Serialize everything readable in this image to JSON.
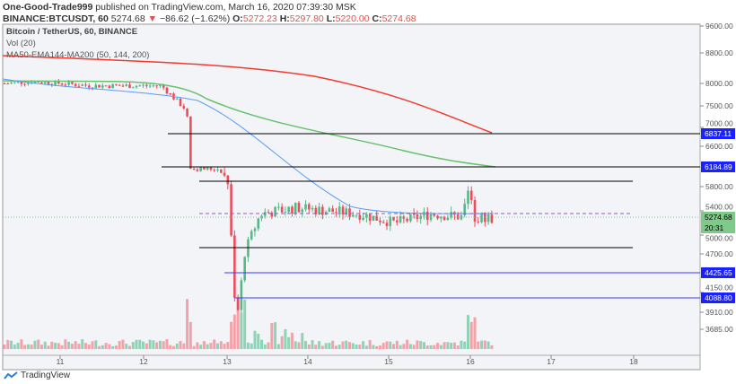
{
  "header": {
    "author": "One-Good-Trade999",
    "published_text": "published on TradingView.com, March 16, 2020 07:39:30 MSK",
    "symbol": "BINANCE:BTCUSDT, 60",
    "last": "5274.68",
    "change": "−86.62 (−1.62%)",
    "o_label": "O:",
    "o": "5272.23",
    "h_label": "H:",
    "h": "5297.80",
    "l_label": "L:",
    "l": "5220.00",
    "c_label": "C:",
    "c": "5274.68"
  },
  "legend": {
    "title": "Bitcoin / TetherUS, 60, BINANCE",
    "vol": "Vol (20)",
    "ma": "MA50-EMA144-MA200 (50, 144, 200)"
  },
  "price_axis": {
    "ticks": [
      "9600.00",
      "8800.00",
      "8000.00",
      "7500.00",
      "7000.00",
      "6600.00",
      "5800.00",
      "5400.00",
      "5000.00",
      "4700.00",
      "4150.00",
      "3910.00",
      "3685.00"
    ],
    "labels": [
      {
        "text": "6837.11",
        "color": "#1a22ff"
      },
      {
        "text": "6184.89",
        "color": "#1a22ff"
      },
      {
        "text": "4425.65",
        "color": "#1a22ff"
      },
      {
        "text": "4088.80",
        "color": "#1a22ff"
      },
      {
        "text": "5274.68",
        "color": "#7fc98a"
      },
      {
        "text": "20:31",
        "color": "#7fc98a"
      }
    ]
  },
  "time_axis": {
    "ticks": [
      "11",
      "12",
      "13",
      "14",
      "15",
      "16",
      "17",
      "18"
    ]
  },
  "colors": {
    "up": "#53b987",
    "down": "#eb4d5c",
    "ma50": "#5b9cf6",
    "ema144": "#69c16e",
    "ma200": "#f23b2f"
  },
  "footer": {
    "logo_text": "TradingView"
  }
}
